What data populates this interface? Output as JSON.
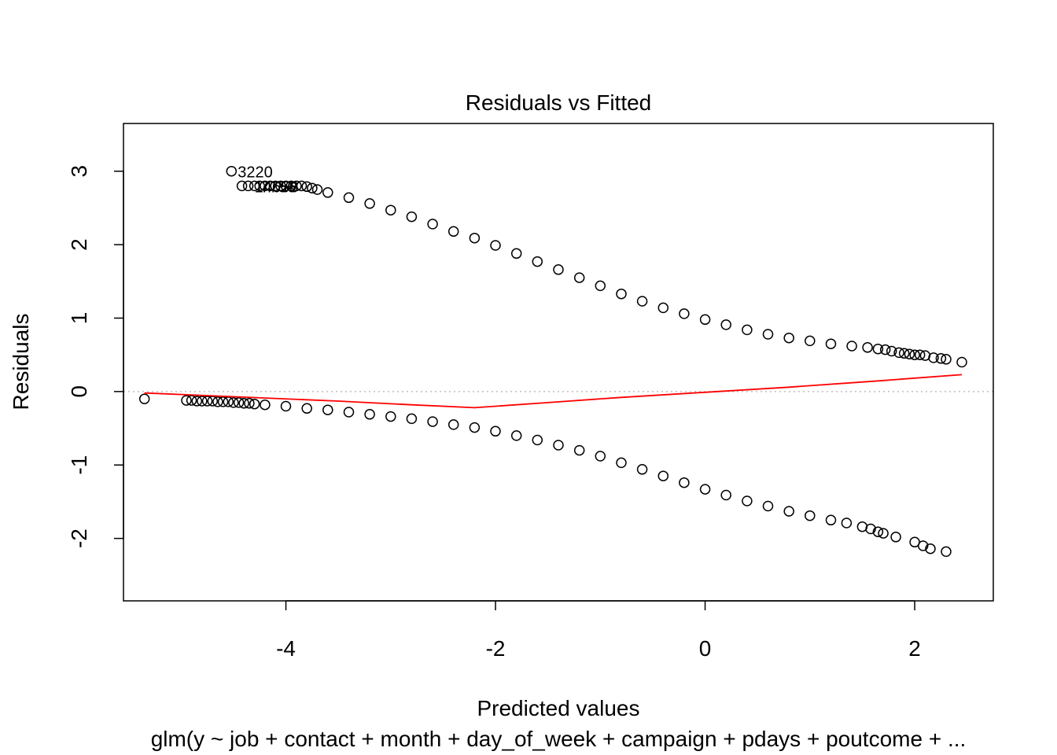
{
  "chart_data": {
    "type": "scatter",
    "title": "Residuals vs Fitted",
    "xlabel": "Predicted values",
    "ylabel": "Residuals",
    "subtitle": "glm(y ~ job + contact + month + day_of_week + campaign + pdays + poutcome + ...",
    "xlim": [
      -5.55,
      2.75
    ],
    "ylim": [
      -2.85,
      3.65
    ],
    "x_ticks": [
      -4,
      -2,
      0,
      2
    ],
    "x_tick_labels": [
      "-4",
      "-2",
      "0",
      "2"
    ],
    "y_ticks": [
      -2,
      -1,
      0,
      1,
      2,
      3
    ],
    "y_tick_labels": [
      "-2",
      "-1",
      "0",
      "1",
      "2",
      "3"
    ],
    "reference_line_y": 0,
    "series": [
      {
        "values_desc": "upper band (positive residuals)",
        "x": [
          -4.52,
          -4.42,
          -4.36,
          -4.3,
          -4.25,
          -4.2,
          -4.15,
          -4.1,
          -4.05,
          -4.0,
          -3.95,
          -3.9,
          -3.85,
          -3.8,
          -3.75,
          -3.7,
          -3.6,
          -3.4,
          -3.2,
          -3.0,
          -2.8,
          -2.6,
          -2.4,
          -2.2,
          -2.0,
          -1.8,
          -1.6,
          -1.4,
          -1.2,
          -1.0,
          -0.8,
          -0.6,
          -0.4,
          -0.2,
          0.0,
          0.2,
          0.4,
          0.6,
          0.8,
          1.0,
          1.2,
          1.4,
          1.55,
          1.65,
          1.72,
          1.78,
          1.85,
          1.9,
          1.95,
          2.0,
          2.05,
          2.1,
          2.18,
          2.25,
          2.3,
          2.45
        ],
        "y": [
          3.0,
          2.8,
          2.8,
          2.8,
          2.8,
          2.8,
          2.8,
          2.8,
          2.8,
          2.8,
          2.8,
          2.8,
          2.8,
          2.79,
          2.77,
          2.75,
          2.71,
          2.64,
          2.56,
          2.47,
          2.38,
          2.28,
          2.18,
          2.09,
          1.99,
          1.88,
          1.77,
          1.66,
          1.55,
          1.44,
          1.33,
          1.23,
          1.14,
          1.06,
          0.98,
          0.91,
          0.84,
          0.78,
          0.73,
          0.69,
          0.65,
          0.62,
          0.6,
          0.58,
          0.57,
          0.55,
          0.53,
          0.52,
          0.51,
          0.5,
          0.5,
          0.49,
          0.46,
          0.45,
          0.44,
          0.4
        ]
      },
      {
        "values_desc": "lower band (negative residuals)",
        "x": [
          -5.35,
          -4.95,
          -4.9,
          -4.85,
          -4.8,
          -4.75,
          -4.7,
          -4.65,
          -4.6,
          -4.55,
          -4.5,
          -4.45,
          -4.4,
          -4.35,
          -4.3,
          -4.2,
          -4.0,
          -3.8,
          -3.6,
          -3.4,
          -3.2,
          -3.0,
          -2.8,
          -2.6,
          -2.4,
          -2.2,
          -2.0,
          -1.8,
          -1.6,
          -1.4,
          -1.2,
          -1.0,
          -0.8,
          -0.6,
          -0.4,
          -0.2,
          0.0,
          0.2,
          0.4,
          0.6,
          0.8,
          1.0,
          1.2,
          1.35,
          1.5,
          1.58,
          1.65,
          1.7,
          1.82,
          2.0,
          2.08,
          2.15,
          2.3
        ],
        "y": [
          -0.1,
          -0.12,
          -0.12,
          -0.13,
          -0.13,
          -0.13,
          -0.13,
          -0.14,
          -0.14,
          -0.14,
          -0.15,
          -0.15,
          -0.16,
          -0.16,
          -0.17,
          -0.18,
          -0.2,
          -0.23,
          -0.25,
          -0.28,
          -0.31,
          -0.34,
          -0.37,
          -0.41,
          -0.45,
          -0.49,
          -0.54,
          -0.6,
          -0.66,
          -0.73,
          -0.8,
          -0.88,
          -0.97,
          -1.06,
          -1.15,
          -1.24,
          -1.33,
          -1.41,
          -1.49,
          -1.56,
          -1.63,
          -1.69,
          -1.75,
          -1.79,
          -1.84,
          -1.87,
          -1.91,
          -1.93,
          -1.98,
          -2.05,
          -2.1,
          -2.14,
          -2.18
        ]
      }
    ],
    "smoother": {
      "color": "#ff0000",
      "x": [
        -5.35,
        -4.5,
        -3.5,
        -2.8,
        -2.2,
        -1.5,
        -0.8,
        0.0,
        0.8,
        1.6,
        2.45
      ],
      "y": [
        -0.02,
        -0.07,
        -0.13,
        -0.18,
        -0.22,
        -0.15,
        -0.08,
        -0.01,
        0.06,
        0.14,
        0.23
      ]
    },
    "point_labels": [
      {
        "text": "3220",
        "x": -4.52,
        "y": 3.0
      },
      {
        "text": "14658",
        "x": -4.36,
        "y": 2.8
      },
      {
        "text": "7756",
        "x": -4.3,
        "y": 2.8
      }
    ],
    "colors": {
      "points": "#000000",
      "smoother": "#ff0000",
      "reference_line": "#bebebe"
    }
  }
}
